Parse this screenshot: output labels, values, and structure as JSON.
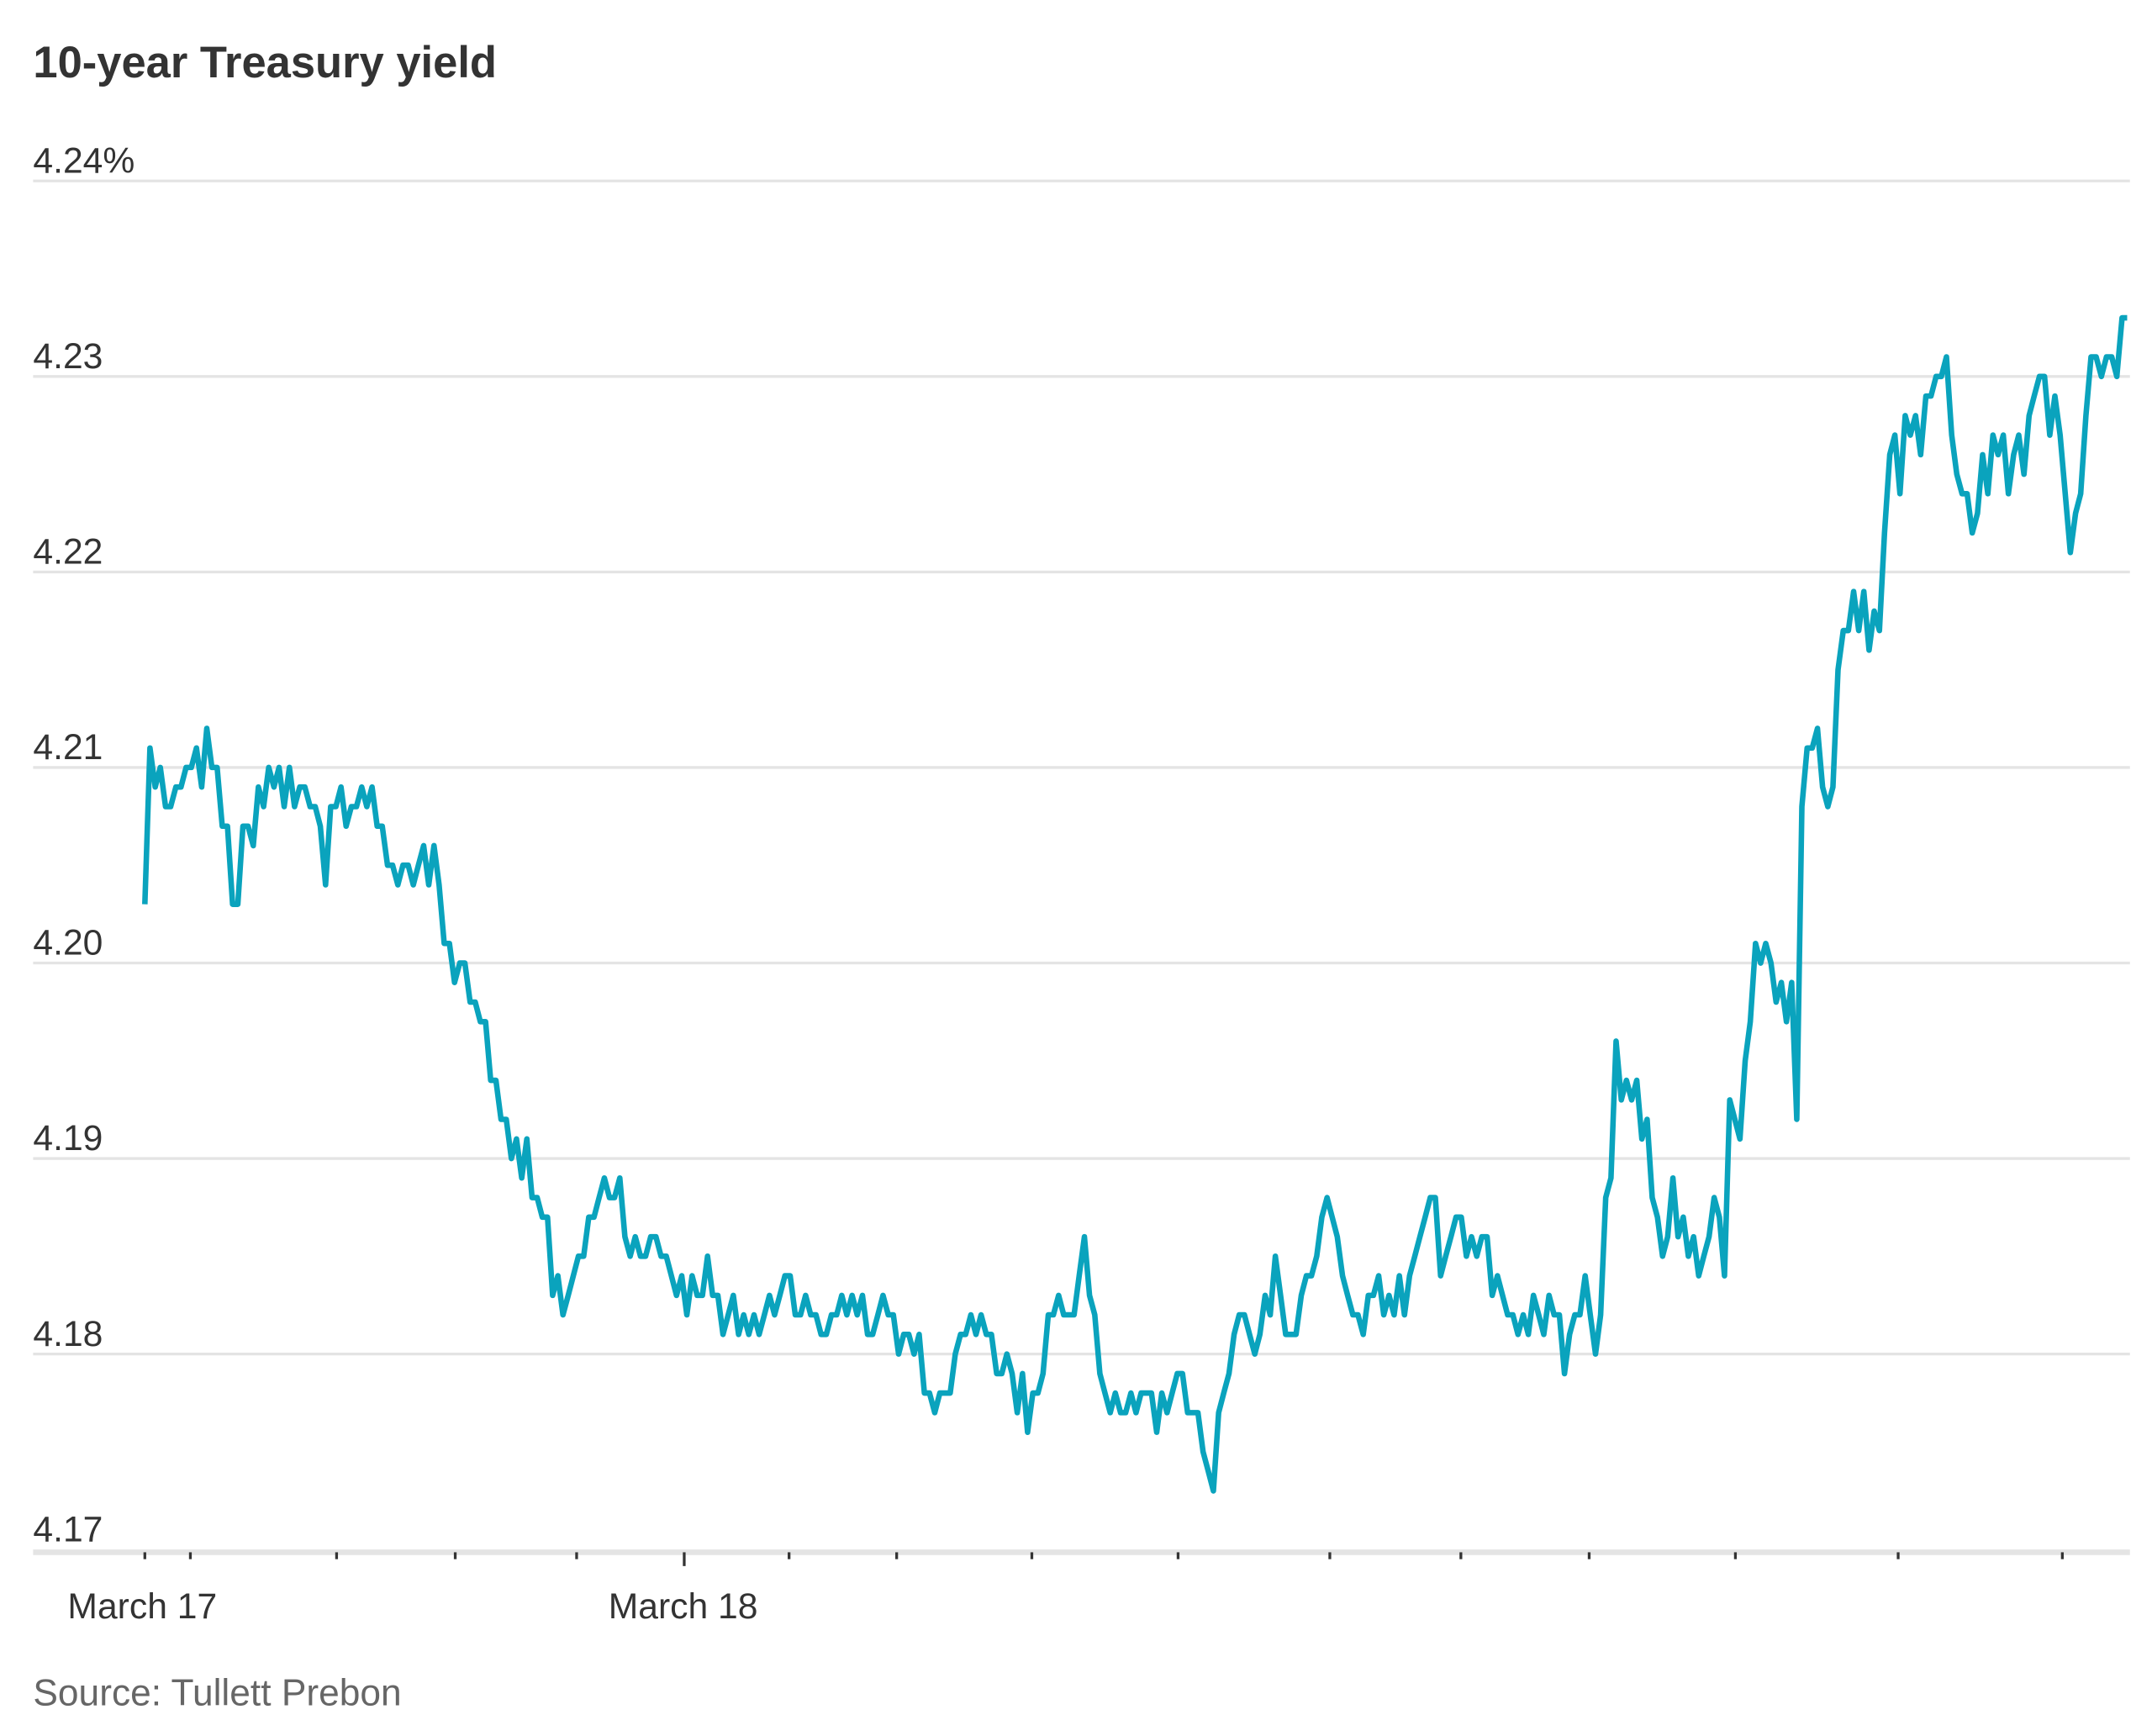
{
  "chart_data": {
    "type": "line",
    "title": "10-year Treasury yield",
    "source": "Source: Tullett Prebon",
    "ylim": [
      4.17,
      4.24
    ],
    "y_ticks": [
      {
        "value": 4.24,
        "label": "4.24%"
      },
      {
        "value": 4.23,
        "label": "4.23"
      },
      {
        "value": 4.22,
        "label": "4.22"
      },
      {
        "value": 4.21,
        "label": "4.21"
      },
      {
        "value": 4.2,
        "label": "4.20"
      },
      {
        "value": 4.19,
        "label": "4.19"
      },
      {
        "value": 4.18,
        "label": "4.18"
      },
      {
        "value": 4.17,
        "label": "4.17"
      }
    ],
    "x_tick_labels": [
      "March 17",
      "March 18"
    ],
    "grid": true,
    "line_color": "#0aa3bd",
    "series": [
      {
        "values": [
          4.203,
          4.211,
          4.209,
          4.21,
          4.208,
          4.208,
          4.209,
          4.209,
          4.21,
          4.21,
          4.211,
          4.209,
          4.212,
          4.21,
          4.21,
          4.207,
          4.207,
          4.203,
          4.203,
          4.207,
          4.207,
          4.206,
          4.209,
          4.208,
          4.21,
          4.209,
          4.21,
          4.208,
          4.21,
          4.208,
          4.209,
          4.209,
          4.208,
          4.208,
          4.207,
          4.204,
          4.208,
          4.208,
          4.209,
          4.207,
          4.208,
          4.208,
          4.209,
          4.208,
          4.209,
          4.207,
          4.207,
          4.205,
          4.205,
          4.204,
          4.205,
          4.205,
          4.204,
          4.205,
          4.206,
          4.204,
          4.206,
          4.204,
          4.201,
          4.201,
          4.199,
          4.2,
          4.2,
          4.198,
          4.198,
          4.197,
          4.197,
          4.194,
          4.194,
          4.192,
          4.192,
          4.19,
          4.191,
          4.189,
          4.191,
          4.188,
          4.188,
          4.187,
          4.187,
          4.183,
          4.184,
          4.182,
          4.183,
          4.184,
          4.185,
          4.185,
          4.187,
          4.187,
          4.188,
          4.189,
          4.188,
          4.188,
          4.189,
          4.186,
          4.185,
          4.186,
          4.185,
          4.185,
          4.186,
          4.186,
          4.185,
          4.185,
          4.184,
          4.183,
          4.184,
          4.182,
          4.184,
          4.183,
          4.183,
          4.185,
          4.183,
          4.183,
          4.181,
          4.182,
          4.183,
          4.181,
          4.182,
          4.181,
          4.182,
          4.181,
          4.182,
          4.183,
          4.182,
          4.183,
          4.184,
          4.184,
          4.182,
          4.182,
          4.183,
          4.182,
          4.182,
          4.181,
          4.181,
          4.182,
          4.182,
          4.183,
          4.182,
          4.183,
          4.182,
          4.183,
          4.181,
          4.181,
          4.182,
          4.183,
          4.182,
          4.182,
          4.18,
          4.181,
          4.181,
          4.18,
          4.181,
          4.178,
          4.178,
          4.177,
          4.178,
          4.178,
          4.178,
          4.18,
          4.181,
          4.181,
          4.182,
          4.181,
          4.182,
          4.181,
          4.181,
          4.179,
          4.179,
          4.18,
          4.179,
          4.177,
          4.179,
          4.176,
          4.178,
          4.178,
          4.179,
          4.182,
          4.182,
          4.183,
          4.182,
          4.182,
          4.182,
          4.184,
          4.186,
          4.183,
          4.182,
          4.179,
          4.178,
          4.177,
          4.178,
          4.177,
          4.177,
          4.178,
          4.177,
          4.178,
          4.178,
          4.178,
          4.176,
          4.178,
          4.177,
          4.178,
          4.179,
          4.179,
          4.177,
          4.177,
          4.177,
          4.175,
          4.174,
          4.173,
          4.177,
          4.178,
          4.179,
          4.181,
          4.182,
          4.182,
          4.181,
          4.18,
          4.181,
          4.183,
          4.182,
          4.185,
          4.183,
          4.181,
          4.181,
          4.181,
          4.183,
          4.184,
          4.184,
          4.185,
          4.187,
          4.188,
          4.187,
          4.186,
          4.184,
          4.183,
          4.182,
          4.182,
          4.181,
          4.183,
          4.183,
          4.184,
          4.182,
          4.183,
          4.182,
          4.184,
          4.182,
          4.184,
          4.185,
          4.186,
          4.187,
          4.188,
          4.188,
          4.184,
          4.185,
          4.186,
          4.187,
          4.187,
          4.185,
          4.186,
          4.185,
          4.186,
          4.186,
          4.183,
          4.184,
          4.183,
          4.182,
          4.182,
          4.181,
          4.182,
          4.181,
          4.183,
          4.182,
          4.181,
          4.183,
          4.182,
          4.182,
          4.179,
          4.181,
          4.182,
          4.182,
          4.184,
          4.182,
          4.18,
          4.182,
          4.188,
          4.189,
          4.196,
          4.193,
          4.194,
          4.193,
          4.194,
          4.191,
          4.192,
          4.188,
          4.187,
          4.185,
          4.186,
          4.189,
          4.186,
          4.187,
          4.185,
          4.186,
          4.184,
          4.185,
          4.186,
          4.188,
          4.187,
          4.184,
          4.193,
          4.192,
          4.191,
          4.195,
          4.197,
          4.201,
          4.2,
          4.201,
          4.2,
          4.198,
          4.199,
          4.197,
          4.199,
          4.192,
          4.208,
          4.211,
          4.211,
          4.212,
          4.209,
          4.208,
          4.209,
          4.215,
          4.217,
          4.217,
          4.219,
          4.217,
          4.219,
          4.216,
          4.218,
          4.217,
          4.222,
          4.226,
          4.227,
          4.224,
          4.228,
          4.227,
          4.228,
          4.226,
          4.229,
          4.229,
          4.23,
          4.23,
          4.231,
          4.227,
          4.225,
          4.224,
          4.224,
          4.222,
          4.223,
          4.226,
          4.224,
          4.227,
          4.226,
          4.227,
          4.224,
          4.226,
          4.227,
          4.225,
          4.228,
          4.229,
          4.23,
          4.23,
          4.227,
          4.229,
          4.227,
          4.224,
          4.221,
          4.223,
          4.224,
          4.228,
          4.231,
          4.231,
          4.23,
          4.231,
          4.231,
          4.23,
          4.233,
          4.233
        ]
      }
    ]
  }
}
